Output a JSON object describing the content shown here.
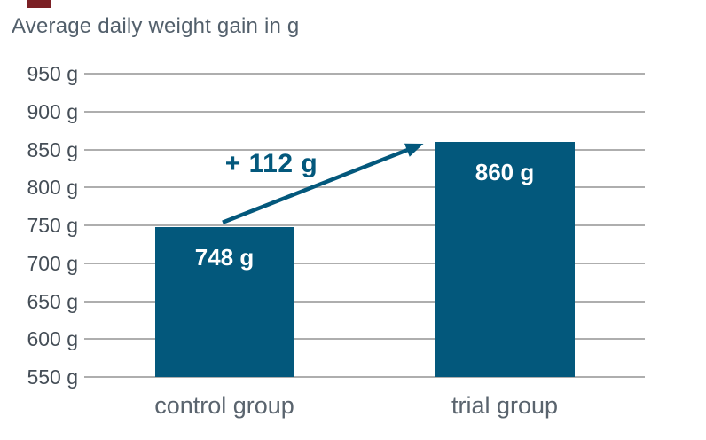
{
  "title_bar": {
    "brand_mark_color": "#7b2025"
  },
  "colors": {
    "bar": "#03587c",
    "arrow": "#03587c",
    "grid": "#aeaeae",
    "title_text": "#525f6b",
    "ytick_text": "#454e57",
    "category_text": "#5a646e",
    "value_text": "#ffffff",
    "annotation_text": "#03587c"
  },
  "chart_data": {
    "type": "bar",
    "title": "Average daily weight gain in g",
    "categories": [
      "control group",
      "trial group"
    ],
    "values": [
      748,
      860
    ],
    "value_labels": [
      "748 g",
      "860 g"
    ],
    "ylim": [
      550,
      950
    ],
    "ytick_step": 50,
    "ytick_values": [
      950,
      900,
      850,
      800,
      750,
      700,
      650,
      600,
      550
    ],
    "ytick_labels": [
      "950 g",
      "900 g",
      "850 g",
      "800 g",
      "750 g",
      "700 g",
      "650 g",
      "600 g",
      "550 g"
    ],
    "grid": true,
    "legend": "none",
    "annotation": {
      "text": "+ 112 g",
      "from_value": 748,
      "to_value": 860,
      "difference": 112
    }
  }
}
